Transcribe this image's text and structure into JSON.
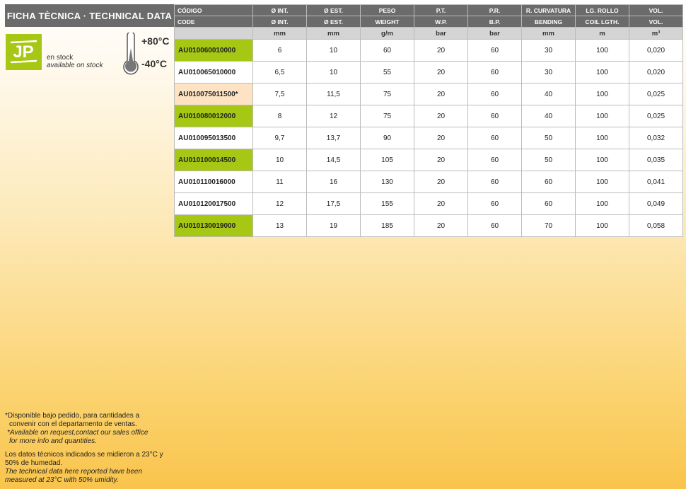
{
  "title": "FICHA TÈCNICA · TECHNICAL DATA",
  "logo": {
    "text": "JP",
    "color": "#a6c714"
  },
  "stock": {
    "es": "en stock",
    "en": "available on stock"
  },
  "temperature": {
    "max": "+80°C",
    "min": "-40°C"
  },
  "table": {
    "headers_es": [
      "CÓDIGO",
      "Ø INT.",
      "Ø EST.",
      "PESO",
      "P.T.",
      "P.R.",
      "R. CURVATURA",
      "LG. ROLLO",
      "VOL."
    ],
    "headers_en": [
      "CODE",
      "Ø INT.",
      "Ø EST.",
      "WEIGHT",
      "W.P.",
      "B.P.",
      "BENDING",
      "COIL LGTH.",
      "VOL."
    ],
    "units": [
      "",
      "mm",
      "mm",
      "g/m",
      "bar",
      "bar",
      "mm",
      "m",
      "m³"
    ],
    "rows": [
      {
        "hl": "green",
        "cells": [
          "AU010060010000",
          "6",
          "10",
          "60",
          "20",
          "60",
          "30",
          "100",
          "0,020"
        ]
      },
      {
        "hl": "",
        "cells": [
          "AU010065010000",
          "6,5",
          "10",
          "55",
          "20",
          "60",
          "30",
          "100",
          "0,020"
        ]
      },
      {
        "hl": "peach",
        "cells": [
          "AU010075011500*",
          "7,5",
          "11,5",
          "75",
          "20",
          "60",
          "40",
          "100",
          "0,025"
        ]
      },
      {
        "hl": "green",
        "cells": [
          "AU010080012000",
          "8",
          "12",
          "75",
          "20",
          "60",
          "40",
          "100",
          "0,025"
        ]
      },
      {
        "hl": "",
        "cells": [
          "AU010095013500",
          "9,7",
          "13,7",
          "90",
          "20",
          "60",
          "50",
          "100",
          "0,032"
        ]
      },
      {
        "hl": "green",
        "cells": [
          "AU010100014500",
          "10",
          "14,5",
          "105",
          "20",
          "60",
          "50",
          "100",
          "0,035"
        ]
      },
      {
        "hl": "",
        "cells": [
          "AU010110016000",
          "11",
          "16",
          "130",
          "20",
          "60",
          "60",
          "100",
          "0,041"
        ]
      },
      {
        "hl": "",
        "cells": [
          "AU010120017500",
          "12",
          "17,5",
          "155",
          "20",
          "60",
          "60",
          "100",
          "0,049"
        ]
      },
      {
        "hl": "green",
        "cells": [
          "AU010130019000",
          "13",
          "19",
          "185",
          "20",
          "60",
          "70",
          "100",
          "0,058"
        ]
      }
    ]
  },
  "notes": {
    "n1_es_a": "*Disponible bajo pedido, para cantidades a",
    "n1_es_b": "convenir con el departamento de ventas.",
    "n1_en_a": "*Available on request,contact our sales office",
    "n1_en_b": "for more info and quantities.",
    "n2_es": "Los datos técnicos indicados se midieron a 23°C y 50% de humedad.",
    "n2_en": "The technical data here reported have been measured at 23°C with 50% umidity."
  }
}
